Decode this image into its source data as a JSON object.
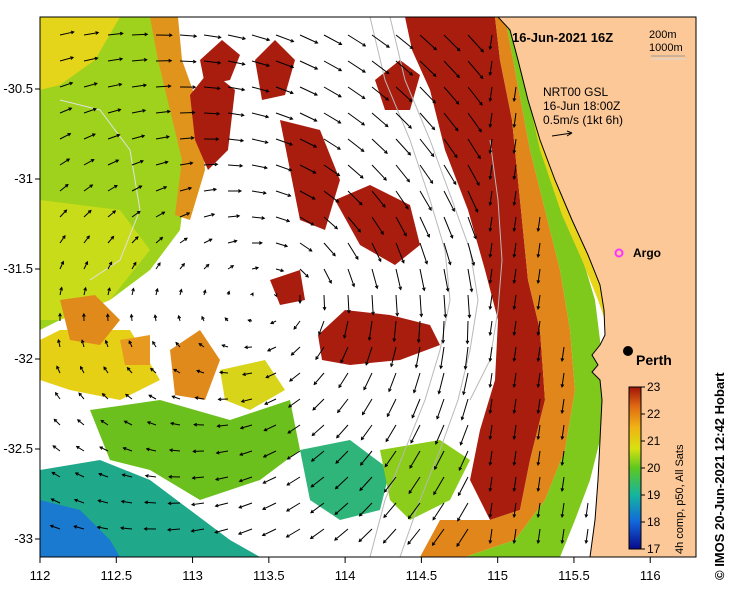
{
  "map": {
    "date_title": "16-Jun-2021 16Z",
    "x_ticks": [
      "112",
      "112.5",
      "113",
      "113.5",
      "114",
      "114.5",
      "115",
      "115.5",
      "116"
    ],
    "y_ticks": [
      "-30.5",
      "-31",
      "-31.5",
      "-32",
      "-32.5",
      "-33"
    ],
    "x_range": [
      112,
      116.3
    ],
    "y_range": [
      -33.1,
      -30.1
    ]
  },
  "contour_legend": {
    "line1": "200m",
    "line2": "1000m"
  },
  "current_info": {
    "line1": "NRT00 GSL",
    "line2": "16-Jun 18:00Z",
    "line3": "0.5m/s (1kt 6h)"
  },
  "markers": {
    "argo": {
      "label": "Argo",
      "lon": 115.76,
      "lat": -31.43,
      "color": "#ff33ff"
    },
    "perth": {
      "label": "Perth",
      "lon": 115.86,
      "lat": -31.95,
      "color": "#000000"
    }
  },
  "colorbar": {
    "ticks": [
      "23",
      "22",
      "21",
      "20",
      "19",
      "18",
      "17"
    ],
    "label": "4h comp, p50, All Sats",
    "min": 17,
    "max": 23
  },
  "credit": "© IMOS 20-Jun-2021 12:42 Hobart",
  "colors": {
    "land": "#fdc898",
    "sst_warm": "#a91d0f",
    "sst_orange": "#e38a1a",
    "sst_yellow": "#eecf12",
    "sst_green": "#83c91b",
    "sst_teal": "#1fa88a",
    "sst_blue": "#1874d0"
  }
}
